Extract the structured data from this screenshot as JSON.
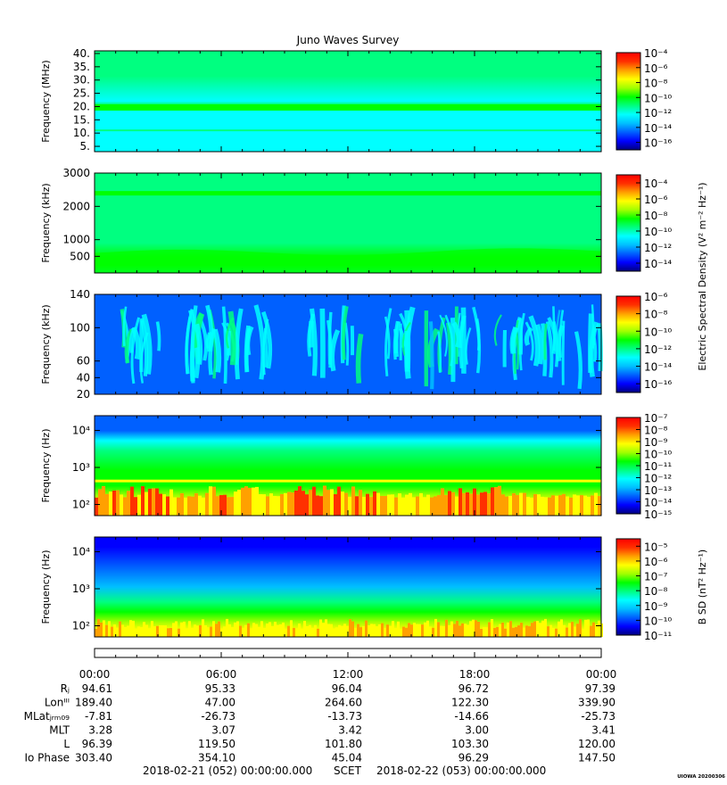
{
  "title": "Juno Waves Survey",
  "colors": {
    "scale": [
      "#000080",
      "#0000ff",
      "#0060ff",
      "#00c0ff",
      "#00ffff",
      "#00ff80",
      "#00ff00",
      "#a0ff00",
      "#ffff00",
      "#ffa000",
      "#ff3000",
      "#ff0000"
    ]
  },
  "chart_data": [
    {
      "type": "heatmap",
      "ylabel": "Frequency (MHz)",
      "yscale": "linear",
      "ylim": [
        3,
        41
      ],
      "yticks": [
        "40.",
        "35.",
        "30.",
        "25.",
        "20.",
        "15.",
        "10.",
        "5."
      ],
      "ytick_values": [
        40,
        35,
        30,
        25,
        20,
        15,
        10,
        5
      ],
      "colorbar": {
        "ticks": [
          "10⁻⁴",
          "10⁻⁶",
          "10⁻⁸",
          "10⁻¹⁰",
          "10⁻¹²",
          "10⁻¹⁴",
          "10⁻¹⁶"
        ],
        "exponents": [
          -4,
          -6,
          -8,
          -10,
          -12,
          -14,
          -16
        ],
        "range": [
          -17,
          -4
        ]
      }
    },
    {
      "type": "heatmap",
      "ylabel": "Frequency (kHz)",
      "yscale": "linear",
      "ylim": [
        0,
        3000
      ],
      "yticks": [
        "3000",
        "2000",
        "1000",
        "500"
      ],
      "ytick_values": [
        3000,
        2000,
        1000,
        500
      ],
      "colorbar": {
        "ticks": [
          "10⁻⁴",
          "10⁻⁶",
          "10⁻⁸",
          "10⁻¹⁰",
          "10⁻¹²",
          "10⁻¹⁴"
        ],
        "exponents": [
          -4,
          -6,
          -8,
          -10,
          -12,
          -14
        ],
        "range": [
          -15,
          -3
        ]
      }
    },
    {
      "type": "heatmap",
      "ylabel": "Frequency (kHz)",
      "yscale": "linear",
      "ylim": [
        20,
        140
      ],
      "yticks": [
        "140",
        "100",
        "60",
        "40",
        "20"
      ],
      "ytick_values": [
        140,
        100,
        60,
        40,
        20
      ],
      "colorbar": {
        "ticks": [
          "10⁻⁶",
          "10⁻⁸",
          "10⁻¹⁰",
          "10⁻¹²",
          "10⁻¹⁴",
          "10⁻¹⁶"
        ],
        "exponents": [
          -6,
          -8,
          -10,
          -12,
          -14,
          -16
        ],
        "range": [
          -17,
          -6
        ]
      }
    },
    {
      "type": "heatmap",
      "ylabel": "Frequency (Hz)",
      "yscale": "log",
      "ylim": [
        50,
        25000
      ],
      "yticks": [
        "10⁴",
        "10³",
        "10²"
      ],
      "ytick_values": [
        10000,
        1000,
        100
      ],
      "colorbar": {
        "ticks": [
          "10⁻⁷",
          "10⁻⁸",
          "10⁻⁹",
          "10⁻¹⁰",
          "10⁻¹¹",
          "10⁻¹²",
          "10⁻¹³",
          "10⁻¹⁴",
          "10⁻¹⁵"
        ],
        "exponents": [
          -7,
          -8,
          -9,
          -10,
          -11,
          -12,
          -13,
          -14,
          -15
        ],
        "range": [
          -15,
          -7
        ]
      }
    },
    {
      "type": "heatmap",
      "ylabel": "Frequency (Hz)",
      "yscale": "log",
      "ylim": [
        50,
        25000
      ],
      "yticks": [
        "10⁴",
        "10³",
        "10²"
      ],
      "ytick_values": [
        10000,
        1000,
        100
      ],
      "colorbar": {
        "ticks": [
          "10⁻⁵",
          "10⁻⁶",
          "10⁻⁷",
          "10⁻⁸",
          "10⁻⁹",
          "10⁻¹⁰",
          "10⁻¹¹"
        ],
        "exponents": [
          -5,
          -6,
          -7,
          -8,
          -9,
          -10,
          -11
        ],
        "range": [
          -11,
          -4.5
        ]
      }
    }
  ],
  "colorbar_labels": {
    "electric": "Electric Spectral Density (V² m⁻² Hz⁻¹)",
    "magnetic": "B SD (nT² Hz⁻¹)"
  },
  "ephemeris": {
    "times": [
      "00:00",
      "06:00",
      "12:00",
      "18:00",
      "00:00"
    ],
    "rows": [
      {
        "label": "Rⱼ",
        "values": [
          "94.61",
          "95.33",
          "96.04",
          "96.72",
          "97.39"
        ]
      },
      {
        "label": "Lonᴵᴵᴵ",
        "values": [
          "189.40",
          "47.00",
          "264.60",
          "122.30",
          "339.90"
        ]
      },
      {
        "label": "MLatⱼᵣₘ₀₉",
        "values": [
          "-7.81",
          "-26.73",
          "-13.73",
          "-14.66",
          "-25.73"
        ]
      },
      {
        "label": "MLT",
        "values": [
          "3.28",
          "3.07",
          "3.42",
          "3.00",
          "3.41"
        ]
      },
      {
        "label": "L",
        "values": [
          "96.39",
          "119.50",
          "101.80",
          "103.30",
          "120.00"
        ]
      },
      {
        "label": "Io Phase",
        "values": [
          "303.40",
          "354.10",
          "45.04",
          "96.29",
          "147.50"
        ]
      }
    ]
  },
  "footer": {
    "start": "2018-02-21 (052) 00:00:00.000",
    "scet": "SCET",
    "end": "2018-02-22 (053) 00:00:00.000",
    "stamp": "UIOWA 20200306"
  }
}
